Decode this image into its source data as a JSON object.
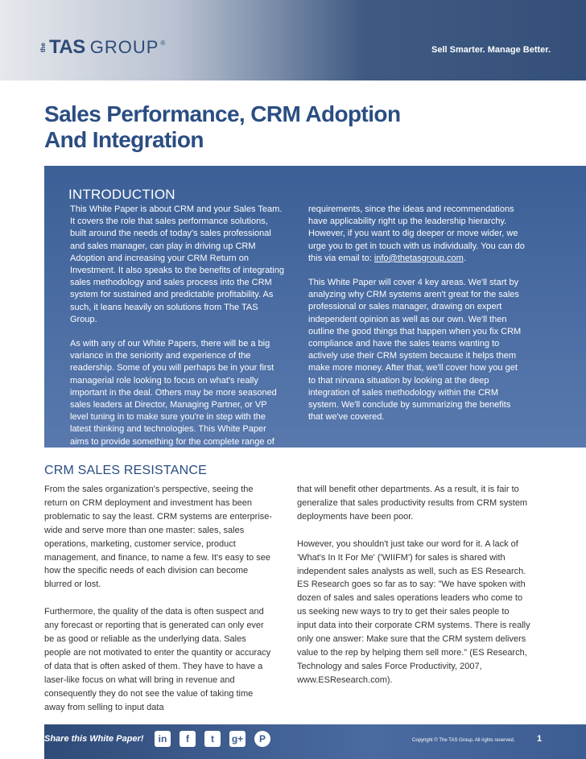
{
  "header": {
    "logo": {
      "the": "the",
      "tas": "TAS",
      "group": "GROUP",
      "reg": "®"
    },
    "tagline": "Sell Smarter.  Manage Better."
  },
  "title": {
    "line1": "Sales Performance, CRM Adoption",
    "line2": "And Integration"
  },
  "intro": {
    "heading": "INTRODUCTION",
    "left_p1": "This White Paper is about CRM and your Sales Team.  It covers the role that sales performance solutions, built around the needs of today's sales professional and sales manager, can play in driving up CRM Adoption and increasing your CRM Return on Investment. It also speaks to the benefits of integrating sales methodology and sales process into the CRM system for sustained and predictable profitability.  As such, it leans heavily on solutions from The TAS Group.",
    "left_p2": "As with any of our White Papers, there will be a big variance in the seniority and experience of the readership.  Some of you will perhaps be in your first managerial role looking to focus on what's really important in the deal.  Others may be more seasoned sales leaders at Director, Managing Partner, or VP level tuning in to make sure you're in step with the latest thinking and technologies.  This White Paper aims to provide something for the complete range of",
    "right_p1_text": "requirements, since the ideas and recommendations have applicability right up the leadership hierarchy. However, if you want to dig deeper or move wider, we urge you to get in touch with us individually. You can do this via email to: ",
    "right_p1_email": "info@thetasgroup.com",
    "right_p1_end": ".",
    "right_p2": "This White Paper will cover 4 key areas. We'll start by analyzing why CRM systems aren't great for the sales professional or sales manager, drawing on expert independent opinion as well as our own.  We'll then outline the good things that happen when you fix CRM compliance and have the sales teams wanting to actively use their CRM system because it helps them make more money.  After that, we'll cover how you get to that nirvana situation by looking at the deep integration of sales methodology within the CRM system.  We'll conclude by summarizing the benefits that we've covered."
  },
  "section": {
    "heading": "CRM SALES RESISTANCE",
    "left_p1": "From the sales organization's perspective, seeing the return on CRM deployment and investment has been problematic to say the least.  CRM systems are enterprise-wide and serve more than one master: sales, sales operations, marketing, customer service, product management, and finance, to name a few.  It's easy to see how the specific needs of each division can become blurred or lost.",
    "left_p2": "Furthermore, the quality of the data is often suspect and any forecast or reporting that is generated can only ever be as good or reliable as the underlying data.  Sales people are not motivated to enter the quantity or accuracy of data that is often asked of them.  They have to have a laser-like focus on what will bring in revenue and consequently they do not see the value of taking time away from selling to input data",
    "right_p1": "that will benefit other departments.  As a result, it is fair to generalize that sales productivity results from CRM system deployments have been poor.",
    "right_p2": "However, you shouldn't just take our word for it.  A lack of 'What's In It For Me' ('WIIFM') for sales is shared with independent sales analysts as well, such as ES Research. ES Research goes so far as to say: \"We have spoken with dozen of sales and sales operations leaders who come to us seeking new ways to try to get their sales people to input data into their corporate CRM systems.  There is really only one answer: Make sure that the CRM system delivers value to the rep by helping them sell more.\" (ES Research, Technology and sales Force Productivity, 2007, www.ESResearch.com)."
  },
  "footer": {
    "share_label": "Share this White Paper!",
    "social": {
      "linkedin": "in",
      "facebook": "f",
      "twitter": "t",
      "googleplus": "g+",
      "pinterest": "P"
    },
    "copyright": "Copyright © The TAS Group. All rights reserved.",
    "page_number": "1"
  }
}
